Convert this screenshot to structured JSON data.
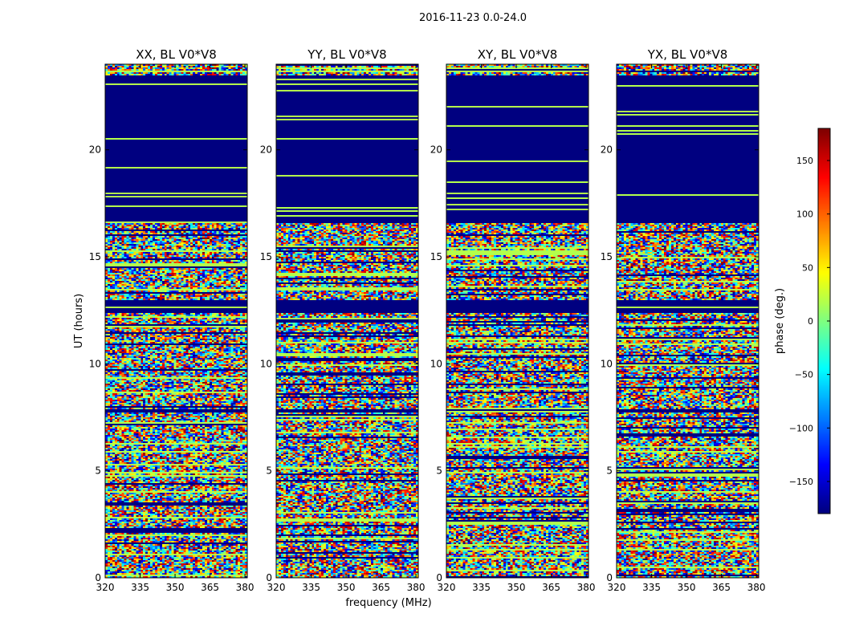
{
  "chart_data": {
    "type": "heatmap",
    "suptitle": "2016-11-23 0.0-24.0",
    "xlabel": "frequency (MHz)",
    "ylabel": "UT (hours)",
    "xlim": [
      320,
      381
    ],
    "ylim": [
      0,
      24
    ],
    "xticks": [
      320,
      335,
      350,
      365,
      380
    ],
    "yticks": [
      0,
      5,
      10,
      15,
      20
    ],
    "panels": [
      {
        "title": "XX, BL V0*V8",
        "pol": "XX"
      },
      {
        "title": "YY, BL V0*V8",
        "pol": "YY"
      },
      {
        "title": "XY, BL V0*V8",
        "pol": "XY"
      },
      {
        "title": "YX, BL V0*V8",
        "pol": "YX"
      }
    ],
    "colorbar": {
      "label": "phase (deg.)",
      "range": [
        -180,
        180
      ],
      "ticks": [
        -150,
        -100,
        -50,
        0,
        50,
        100,
        150
      ],
      "tick_labels": [
        "−150",
        "−100",
        "−50",
        "0",
        "50",
        "100",
        "150"
      ],
      "colormap": "jet"
    },
    "flagged_ut_ranges": [
      [
        16.6,
        23.5
      ],
      [
        12.4,
        13.0
      ],
      [
        7.7,
        7.9
      ]
    ],
    "flag_value_deg": -180
  }
}
